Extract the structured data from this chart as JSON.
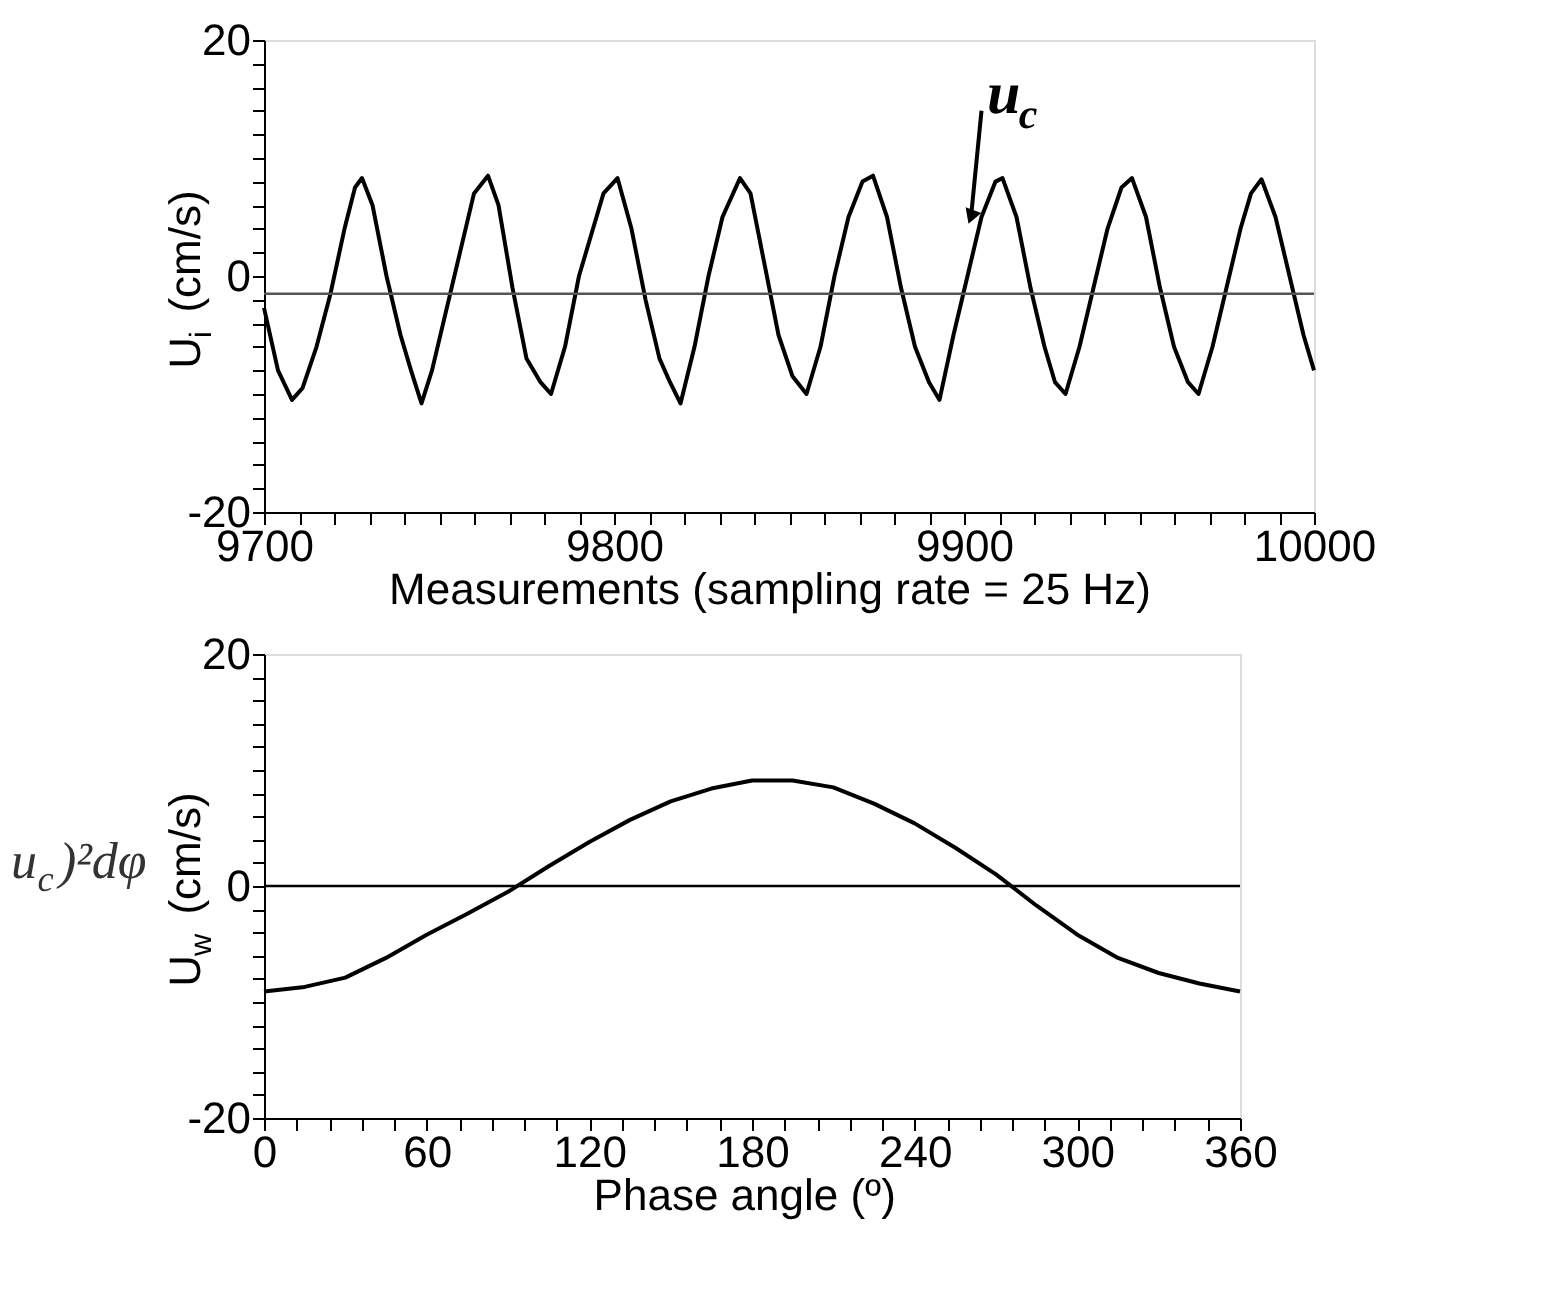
{
  "chart_data": [
    {
      "type": "line",
      "xlabel": "Measurements (sampling rate = 25 Hz)",
      "ylabel": "U$_{i}$ (cm/s)",
      "series": [
        {
          "color": "#000000",
          "x": [
            9700,
            9704,
            9708,
            9711,
            9715,
            9719,
            9723,
            9726,
            9728,
            9731,
            9735,
            9739,
            9742,
            9745,
            9748,
            9752,
            9756,
            9760,
            9764,
            9767,
            9771,
            9775,
            9779,
            9782,
            9786,
            9790,
            9794,
            9797,
            9801,
            9805,
            9809,
            9813,
            9816,
            9819,
            9823,
            9827,
            9831,
            9836,
            9839,
            9843,
            9847,
            9851,
            9855,
            9859,
            9863,
            9867,
            9871,
            9874,
            9878,
            9882,
            9886,
            9890,
            9893,
            9897,
            9901,
            9905,
            9909,
            9911,
            9915,
            9919,
            9923,
            9926,
            9929,
            9933,
            9937,
            9941,
            9945,
            9948,
            9952,
            9956,
            9960,
            9964,
            9967,
            9971,
            9975,
            9979,
            9982,
            9985,
            9989,
            9993,
            9997,
            10000
          ],
          "values": [
            -2.7,
            -8,
            -10.5,
            -9.5,
            -6,
            -1.5,
            4,
            7.5,
            8.3,
            6,
            0,
            -5,
            -8,
            -10.8,
            -8,
            -3,
            2,
            7,
            8.5,
            6,
            -1,
            -7,
            -9,
            -10,
            -6,
            0,
            4,
            7,
            8.3,
            4,
            -2,
            -7,
            -9,
            -10.8,
            -6,
            0,
            5,
            8.3,
            7,
            1,
            -5,
            -8.5,
            -10,
            -6,
            0,
            5,
            8,
            8.5,
            5,
            -1,
            -6,
            -9,
            -10.5,
            -5,
            0,
            5,
            8,
            8.3,
            5,
            -1,
            -6,
            -9,
            -10,
            -6,
            -1,
            4,
            7.5,
            8.3,
            5,
            -1,
            -6,
            -9,
            -10,
            -6,
            -1,
            4,
            7,
            8.2,
            5,
            0,
            -5,
            -8
          ]
        }
      ],
      "xlim": [
        9700,
        10000
      ],
      "xticks": [
        9700,
        {
          "value": 9710,
          "label": null
        },
        {
          "value": 9720,
          "label": null
        },
        {
          "value": 9730,
          "label": null
        },
        {
          "value": 9740,
          "label": null
        },
        {
          "value": 9750,
          "label": null
        },
        {
          "value": 9760,
          "label": null
        },
        {
          "value": 9770,
          "label": null
        },
        {
          "value": 9780,
          "label": null
        },
        {
          "value": 9790,
          "label": null
        },
        9800,
        {
          "value": 9810,
          "label": null
        },
        {
          "value": 9820,
          "label": null
        },
        {
          "value": 9830,
          "label": null
        },
        {
          "value": 9840,
          "label": null
        },
        {
          "value": 9850,
          "label": null
        },
        {
          "value": 9860,
          "label": null
        },
        {
          "value": 9870,
          "label": null
        },
        {
          "value": 9880,
          "label": null
        },
        {
          "value": 9890,
          "label": null
        },
        9900,
        {
          "value": 9910,
          "label": null
        },
        {
          "value": 9920,
          "label": null
        },
        {
          "value": 9930,
          "label": null
        },
        {
          "value": 9940,
          "label": null
        },
        {
          "value": 9950,
          "label": null
        },
        {
          "value": 9960,
          "label": null
        },
        {
          "value": 9970,
          "label": null
        },
        {
          "value": 9980,
          "label": null
        },
        {
          "value": 9990,
          "label": null
        },
        10000
      ],
      "ylim": [
        -20,
        20
      ],
      "yticks": [
        -20,
        {
          "value": -18,
          "label": null
        },
        {
          "value": -16,
          "label": null
        },
        {
          "value": -14,
          "label": null
        },
        {
          "value": -12,
          "label": null
        },
        {
          "value": -10,
          "label": null
        },
        {
          "value": -8,
          "label": null
        },
        {
          "value": -6,
          "label": null
        },
        {
          "value": -4,
          "label": null
        },
        {
          "value": -2,
          "label": null
        },
        0,
        {
          "value": 2,
          "label": null
        },
        {
          "value": 4,
          "label": null
        },
        {
          "value": 6,
          "label": null
        },
        {
          "value": 8,
          "label": null
        },
        {
          "value": 10,
          "label": null
        },
        {
          "value": 12,
          "label": null
        },
        {
          "value": 14,
          "label": null
        },
        {
          "value": 16,
          "label": null
        },
        {
          "value": 18,
          "label": null
        },
        20
      ],
      "ref_lines": [
        {
          "axis": "y",
          "value": -1.5,
          "color": "#555555"
        }
      ],
      "annotations": [
        {
          "text": "u$_{c}$",
          "x": 9902,
          "y": 5
        }
      ],
      "grid": false,
      "marker": "none",
      "line_style": "solid"
    },
    {
      "type": "line",
      "xlabel": "Phase angle (º)",
      "ylabel": "U$_{w}$ (cm/s)",
      "series": [
        {
          "color": "#000000",
          "x": [
            0,
            15,
            30,
            45,
            60,
            75,
            90,
            105,
            120,
            135,
            150,
            165,
            180,
            195,
            210,
            225,
            240,
            255,
            270,
            285,
            300,
            315,
            330,
            345,
            360
          ],
          "values": [
            -9.1,
            -8.7,
            -7.9,
            -6.2,
            -4.2,
            -2.4,
            -0.5,
            1.7,
            3.8,
            5.7,
            7.3,
            8.4,
            9.1,
            9.1,
            8.5,
            7.1,
            5.4,
            3.3,
            1.0,
            -1.7,
            -4.2,
            -6.2,
            -7.5,
            -8.4,
            -9.1
          ]
        }
      ],
      "xlim": [
        0,
        360
      ],
      "xticks": [
        0,
        {
          "value": 12,
          "label": null
        },
        {
          "value": 24,
          "label": null
        },
        {
          "value": 36,
          "label": null
        },
        {
          "value": 48,
          "label": null
        },
        60,
        {
          "value": 72,
          "label": null
        },
        {
          "value": 84,
          "label": null
        },
        {
          "value": 96,
          "label": null
        },
        {
          "value": 108,
          "label": null
        },
        120,
        {
          "value": 132,
          "label": null
        },
        {
          "value": 144,
          "label": null
        },
        {
          "value": 156,
          "label": null
        },
        {
          "value": 168,
          "label": null
        },
        180,
        {
          "value": 192,
          "label": null
        },
        {
          "value": 204,
          "label": null
        },
        {
          "value": 216,
          "label": null
        },
        {
          "value": 228,
          "label": null
        },
        240,
        {
          "value": 252,
          "label": null
        },
        {
          "value": 264,
          "label": null
        },
        {
          "value": 276,
          "label": null
        },
        {
          "value": 288,
          "label": null
        },
        300,
        {
          "value": 312,
          "label": null
        },
        {
          "value": 324,
          "label": null
        },
        {
          "value": 336,
          "label": null
        },
        {
          "value": 348,
          "label": null
        },
        360
      ],
      "ylim": [
        -20,
        20
      ],
      "yticks": [
        -20,
        {
          "value": -18,
          "label": null
        },
        {
          "value": -16,
          "label": null
        },
        {
          "value": -14,
          "label": null
        },
        {
          "value": -12,
          "label": null
        },
        {
          "value": -10,
          "label": null
        },
        {
          "value": -8,
          "label": null
        },
        {
          "value": -6,
          "label": null
        },
        {
          "value": -4,
          "label": null
        },
        {
          "value": -2,
          "label": null
        },
        0,
        {
          "value": 2,
          "label": null
        },
        {
          "value": 4,
          "label": null
        },
        {
          "value": 6,
          "label": null
        },
        {
          "value": 8,
          "label": null
        },
        {
          "value": 10,
          "label": null
        },
        {
          "value": 12,
          "label": null
        },
        {
          "value": 14,
          "label": null
        },
        {
          "value": 16,
          "label": null
        },
        {
          "value": 18,
          "label": null
        },
        20
      ],
      "ref_lines": [
        {
          "axis": "y",
          "value": 0,
          "color": "#000000"
        }
      ],
      "annotations": [
        "u$_{c}$)²dφ"
      ],
      "grid": false,
      "marker": "none",
      "line_style": "solid"
    }
  ]
}
